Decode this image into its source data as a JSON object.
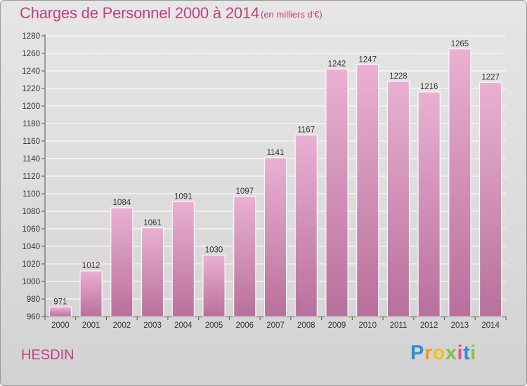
{
  "header": {
    "title": "Charges de Personnel 2000 à 2014",
    "unit_note": "(en milliers d'€)"
  },
  "footer": {
    "town": "HESDIN",
    "logo_letters": [
      "P",
      "r",
      "o",
      "x",
      "i",
      "t",
      "i"
    ],
    "logo_colors": [
      "#2f8fd3",
      "#f29a1c",
      "#f2c01c",
      "#7cc242",
      "#e34f9c",
      "#2f8fd3",
      "#8fc43a"
    ]
  },
  "chart_data": {
    "type": "bar",
    "title": "Charges de Personnel 2000 à 2014",
    "subtitle": "(en milliers d'€)",
    "xlabel": "",
    "ylabel": "",
    "categories": [
      "2000",
      "2001",
      "2002",
      "2003",
      "2004",
      "2005",
      "2006",
      "2007",
      "2008",
      "2009",
      "2010",
      "2011",
      "2012",
      "2013",
      "2014"
    ],
    "values": [
      971,
      1012,
      1084,
      1061,
      1091,
      1030,
      1097,
      1141,
      1167,
      1242,
      1247,
      1228,
      1216,
      1265,
      1227
    ],
    "ylim": [
      960,
      1280
    ],
    "yticks": [
      960,
      980,
      1000,
      1020,
      1040,
      1060,
      1080,
      1100,
      1120,
      1140,
      1160,
      1180,
      1200,
      1220,
      1240,
      1260,
      1280
    ],
    "grid": true,
    "legend": "none",
    "colors": {
      "bar_top": "#eab0d2",
      "bar_bottom": "#b8709c",
      "bar_stroke": "#ffffff",
      "grid": "#ffffff",
      "text": "#c0407e"
    }
  }
}
